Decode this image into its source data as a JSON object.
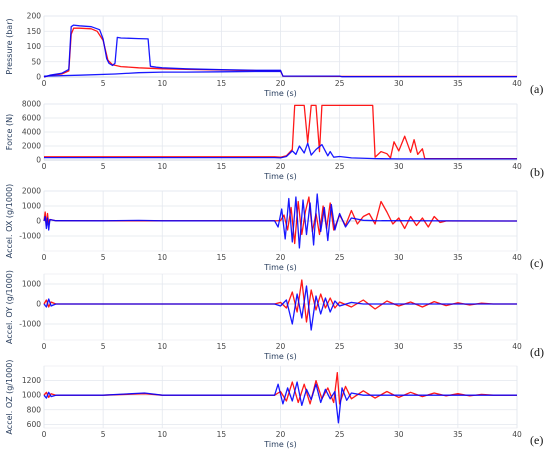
{
  "colors": {
    "series_a": "#ff0000",
    "series_b": "#0000ff",
    "grid": "#e3e7ee",
    "text": "#2a3f5f"
  },
  "chart_data": [
    {
      "id": "a",
      "type": "line",
      "panel_label": "(a)",
      "xlabel": "Time (s)",
      "ylabel": "Pressure (bar)",
      "xlim": [
        0,
        40
      ],
      "ylim": [
        0,
        200
      ],
      "xticks": [
        0,
        5,
        10,
        15,
        20,
        25,
        30,
        35,
        40
      ],
      "yticks": [
        0,
        50,
        100,
        150,
        200
      ],
      "series": [
        {
          "color": "#ff0000",
          "x": [
            0,
            0.5,
            1.5,
            2.1,
            2.3,
            2.5,
            3.0,
            4.0,
            4.5,
            5.0,
            5.4,
            5.8,
            6.5,
            8,
            10,
            12,
            15,
            18,
            20,
            20.2,
            25,
            30,
            35,
            40
          ],
          "y": [
            0,
            5,
            10,
            20,
            140,
            160,
            160,
            158,
            150,
            120,
            55,
            40,
            34,
            30,
            27,
            25,
            23,
            21,
            20,
            3,
            2,
            2,
            2,
            2
          ]
        },
        {
          "color": "#0000ff",
          "x": [
            0,
            0.5,
            1.5,
            2.1,
            2.3,
            2.5,
            3.0,
            4.0,
            4.7,
            5.0,
            5.3,
            5.5,
            5.8,
            6.0,
            6.2,
            6.5,
            8.0,
            8.8,
            9.0,
            9.5,
            10,
            12,
            15,
            18,
            20,
            20.2,
            25,
            25.2,
            30,
            35,
            40
          ],
          "y": [
            0,
            6,
            12,
            25,
            165,
            170,
            168,
            165,
            155,
            125,
            60,
            45,
            38,
            45,
            130,
            128,
            126,
            125,
            35,
            32,
            30,
            27,
            24,
            22,
            22,
            3,
            3,
            1,
            1,
            1,
            1
          ]
        },
        {
          "color": "#0000ff",
          "x": [
            0,
            3,
            6,
            8,
            10,
            12,
            15,
            18,
            20
          ],
          "y": [
            3,
            6,
            10,
            14,
            16,
            16,
            17,
            18,
            18
          ]
        }
      ]
    },
    {
      "id": "b",
      "type": "line",
      "panel_label": "(b)",
      "xlabel": "Time (s)",
      "ylabel": "Force (N)",
      "xlim": [
        0,
        40
      ],
      "ylim": [
        0,
        8000
      ],
      "xticks": [
        0,
        5,
        10,
        15,
        20,
        25,
        30,
        35,
        40
      ],
      "yticks": [
        0,
        2000,
        4000,
        6000,
        8000
      ],
      "series": [
        {
          "color": "#ff0000",
          "x": [
            0,
            19.5,
            20,
            20.5,
            21,
            21.2,
            21.5,
            22,
            22.3,
            22.6,
            23,
            23.3,
            23.5,
            24,
            24.5,
            25,
            25.5,
            26,
            26.5,
            27,
            27.5,
            27.8,
            28,
            28.5,
            29,
            29.3,
            29.6,
            30,
            30.5,
            31,
            31.3,
            31.6,
            32,
            32.2,
            40
          ],
          "y": [
            450,
            450,
            400,
            600,
            1500,
            7800,
            7800,
            7800,
            2500,
            7800,
            7800,
            1200,
            7800,
            7800,
            7800,
            7800,
            7800,
            7800,
            7800,
            7800,
            7800,
            7800,
            400,
            1200,
            900,
            300,
            2600,
            1300,
            3400,
            1100,
            2900,
            800,
            1600,
            200,
            200
          ]
        },
        {
          "color": "#0000ff",
          "x": [
            0,
            19.5,
            20,
            20.5,
            21,
            21.3,
            21.6,
            22,
            22.3,
            22.6,
            23,
            23.5,
            24,
            24.2,
            24.5,
            25,
            26,
            28,
            30,
            40
          ],
          "y": [
            350,
            350,
            300,
            500,
            1300,
            800,
            2000,
            1000,
            2400,
            700,
            1500,
            2200,
            600,
            1200,
            400,
            500,
            300,
            200,
            150,
            150
          ]
        }
      ]
    },
    {
      "id": "c",
      "type": "line",
      "panel_label": "(c)",
      "xlabel": "Time (s)",
      "ylabel": "Accel. OX (g/1000)",
      "xlim": [
        0,
        40
      ],
      "ylim": [
        -2000,
        2000
      ],
      "xticks": [
        0,
        5,
        10,
        15,
        20,
        25,
        30,
        35,
        40
      ],
      "yticks": [
        -1000,
        0,
        1000,
        2000
      ],
      "series": [
        {
          "color": "#ff0000",
          "x": [
            0,
            0.1,
            0.2,
            0.3,
            0.4,
            0.5,
            1,
            5,
            10,
            15,
            19.5,
            20,
            20.3,
            20.6,
            20.9,
            21.2,
            21.5,
            21.8,
            22.1,
            22.4,
            22.7,
            23,
            23.3,
            23.6,
            23.9,
            24.2,
            24.5,
            25,
            25.5,
            26,
            26.5,
            27,
            27.5,
            28,
            28.5,
            29,
            29.5,
            30,
            30.5,
            31,
            31.5,
            32,
            32.5,
            33,
            33.5,
            34,
            40
          ],
          "y": [
            0,
            600,
            -300,
            500,
            -200,
            100,
            20,
            10,
            10,
            10,
            10,
            30,
            400,
            -600,
            900,
            -1500,
            1300,
            -900,
            600,
            1600,
            -700,
            500,
            -900,
            1000,
            -500,
            1200,
            -600,
            400,
            -300,
            700,
            -200,
            300,
            500,
            -200,
            1300,
            600,
            -200,
            200,
            -500,
            300,
            -300,
            200,
            -400,
            300,
            -100,
            0,
            0
          ]
        },
        {
          "color": "#0000ff",
          "x": [
            0,
            0.1,
            0.2,
            0.3,
            0.4,
            0.5,
            1,
            5,
            8,
            10,
            15,
            19.5,
            19.8,
            20.1,
            20.4,
            20.7,
            21,
            21.3,
            21.6,
            21.9,
            22.2,
            22.5,
            22.8,
            23.1,
            23.4,
            23.7,
            24,
            24.3,
            24.6,
            25,
            25.5,
            26,
            27,
            28,
            40
          ],
          "y": [
            0,
            300,
            -500,
            200,
            -600,
            100,
            20,
            10,
            40,
            10,
            10,
            10,
            -400,
            800,
            -1200,
            1500,
            -1400,
            1600,
            -1800,
            1400,
            -900,
            1200,
            -1600,
            1800,
            -700,
            900,
            -1300,
            1100,
            -600,
            500,
            -400,
            200,
            50,
            20,
            0
          ]
        }
      ]
    },
    {
      "id": "d",
      "type": "line",
      "panel_label": "(d)",
      "xlabel": "Time (s)",
      "ylabel": "Accel. OY (g/1000)",
      "xlim": [
        0,
        40
      ],
      "ylim": [
        -1800,
        1500
      ],
      "xticks": [
        0,
        5,
        10,
        15,
        20,
        25,
        30,
        35,
        40
      ],
      "yticks": [
        -1000,
        0,
        1000
      ],
      "series": [
        {
          "color": "#ff0000",
          "x": [
            0,
            0.2,
            0.4,
            0.6,
            1,
            5,
            10,
            15,
            19.5,
            20,
            20.5,
            21,
            21.4,
            21.8,
            22.2,
            22.6,
            23,
            23.4,
            23.8,
            24.2,
            24.6,
            25,
            26,
            27,
            28,
            29,
            30,
            31,
            32,
            33,
            34,
            35,
            36,
            37,
            38,
            40
          ],
          "y": [
            0,
            200,
            -150,
            100,
            0,
            0,
            0,
            0,
            0,
            80,
            -200,
            600,
            -400,
            1200,
            -900,
            700,
            -300,
            500,
            -200,
            300,
            -200,
            100,
            -150,
            200,
            -250,
            150,
            -100,
            100,
            -150,
            120,
            -80,
            60,
            -50,
            40,
            0,
            0
          ]
        },
        {
          "color": "#0000ff",
          "x": [
            0,
            0.2,
            0.4,
            0.6,
            1,
            5,
            10,
            15,
            19.5,
            20,
            20.5,
            21,
            21.4,
            21.8,
            22.2,
            22.6,
            23,
            23.4,
            23.8,
            24.2,
            24.6,
            25,
            26,
            27,
            40
          ],
          "y": [
            0,
            -150,
            250,
            -100,
            0,
            0,
            0,
            0,
            0,
            -100,
            200,
            -1000,
            500,
            -700,
            900,
            -1300,
            400,
            -500,
            300,
            -400,
            150,
            -100,
            80,
            0,
            0
          ]
        }
      ]
    },
    {
      "id": "e",
      "type": "line",
      "panel_label": "(e)",
      "xlabel": "Time (s)",
      "ylabel": "Accel. OZ (g/1000)",
      "xlim": [
        0,
        40
      ],
      "ylim": [
        550,
        1400
      ],
      "xticks": [
        0,
        5,
        10,
        15,
        20,
        25,
        30,
        35,
        40
      ],
      "yticks": [
        600,
        800,
        1000,
        1200
      ],
      "series": [
        {
          "color": "#ff0000",
          "x": [
            0,
            0.2,
            0.4,
            0.6,
            1,
            5,
            8.5,
            10,
            15,
            19.5,
            20,
            20.5,
            21,
            21.5,
            22,
            22.5,
            23,
            23.5,
            24,
            24.5,
            24.8,
            25,
            25.5,
            26,
            27,
            28,
            29,
            30,
            31,
            32,
            33,
            34,
            35,
            36,
            37,
            38,
            40
          ],
          "y": [
            1000,
            1040,
            970,
            1020,
            1000,
            1000,
            1020,
            1000,
            1000,
            1000,
            1050,
            920,
            1180,
            900,
            1150,
            880,
            1200,
            950,
            1100,
            900,
            1310,
            880,
            1120,
            950,
            1060,
            960,
            1050,
            970,
            1040,
            980,
            1030,
            990,
            1020,
            990,
            1010,
            1000,
            1000
          ]
        },
        {
          "color": "#0000ff",
          "x": [
            0,
            0.2,
            0.4,
            0.6,
            1,
            5,
            8.5,
            10,
            15,
            19.5,
            19.8,
            20.2,
            20.6,
            21,
            21.4,
            21.8,
            22.2,
            22.6,
            23,
            23.4,
            23.8,
            24.2,
            24.6,
            24.9,
            25.2,
            25.6,
            26,
            27,
            40
          ],
          "y": [
            1000,
            960,
            1040,
            980,
            1000,
            1000,
            1030,
            1000,
            1000,
            1000,
            1150,
            880,
            1100,
            920,
            1180,
            860,
            1080,
            940,
            1150,
            900,
            1080,
            950,
            1050,
            620,
            1100,
            930,
            1030,
            1000,
            1000
          ]
        }
      ]
    }
  ]
}
